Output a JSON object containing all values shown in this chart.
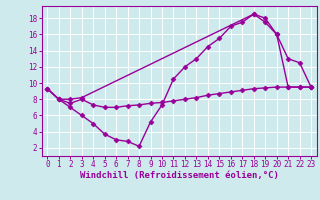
{
  "background_color": "#ceeaec",
  "line_color": "#990099",
  "grid_color": "#ffffff",
  "xlabel": "Windchill (Refroidissement éolien,°C)",
  "xlim": [
    -0.5,
    23.5
  ],
  "ylim": [
    1.0,
    19.5
  ],
  "yticks": [
    2,
    4,
    6,
    8,
    10,
    12,
    14,
    16,
    18
  ],
  "xticks": [
    0,
    1,
    2,
    3,
    4,
    5,
    6,
    7,
    8,
    9,
    10,
    11,
    12,
    13,
    14,
    15,
    16,
    17,
    18,
    19,
    20,
    21,
    22,
    23
  ],
  "line1_x": [
    0,
    1,
    2,
    3,
    4,
    5,
    6,
    7,
    8,
    9,
    10,
    11,
    12,
    13,
    14,
    15,
    16,
    17,
    18,
    19,
    20,
    21,
    22,
    23
  ],
  "line1_y": [
    9.3,
    8.0,
    7.0,
    6.0,
    5.0,
    3.7,
    3.0,
    2.8,
    2.2,
    5.2,
    7.3,
    10.5,
    12.0,
    13.0,
    14.5,
    15.5,
    17.0,
    17.5,
    18.5,
    18.0,
    16.0,
    13.0,
    12.5,
    9.5
  ],
  "line2_x": [
    0,
    1,
    2,
    3,
    18,
    19,
    20,
    21,
    22,
    23
  ],
  "line2_y": [
    9.3,
    8.0,
    8.0,
    8.2,
    18.5,
    17.5,
    16.0,
    9.5,
    9.5,
    9.5
  ],
  "line3_x": [
    0,
    1,
    2,
    3,
    4,
    5,
    6,
    7,
    8,
    9,
    10,
    11,
    12,
    13,
    14,
    15,
    16,
    17,
    18,
    19,
    20,
    21,
    22,
    23
  ],
  "line3_y": [
    9.3,
    8.0,
    7.5,
    8.0,
    7.3,
    7.0,
    7.0,
    7.2,
    7.3,
    7.5,
    7.6,
    7.8,
    8.0,
    8.2,
    8.5,
    8.7,
    8.9,
    9.1,
    9.3,
    9.4,
    9.5,
    9.5,
    9.5,
    9.5
  ],
  "marker": "D",
  "markersize": 2.5,
  "linewidth": 1.0,
  "tick_fontsize": 5.5,
  "xlabel_fontsize": 6.5
}
